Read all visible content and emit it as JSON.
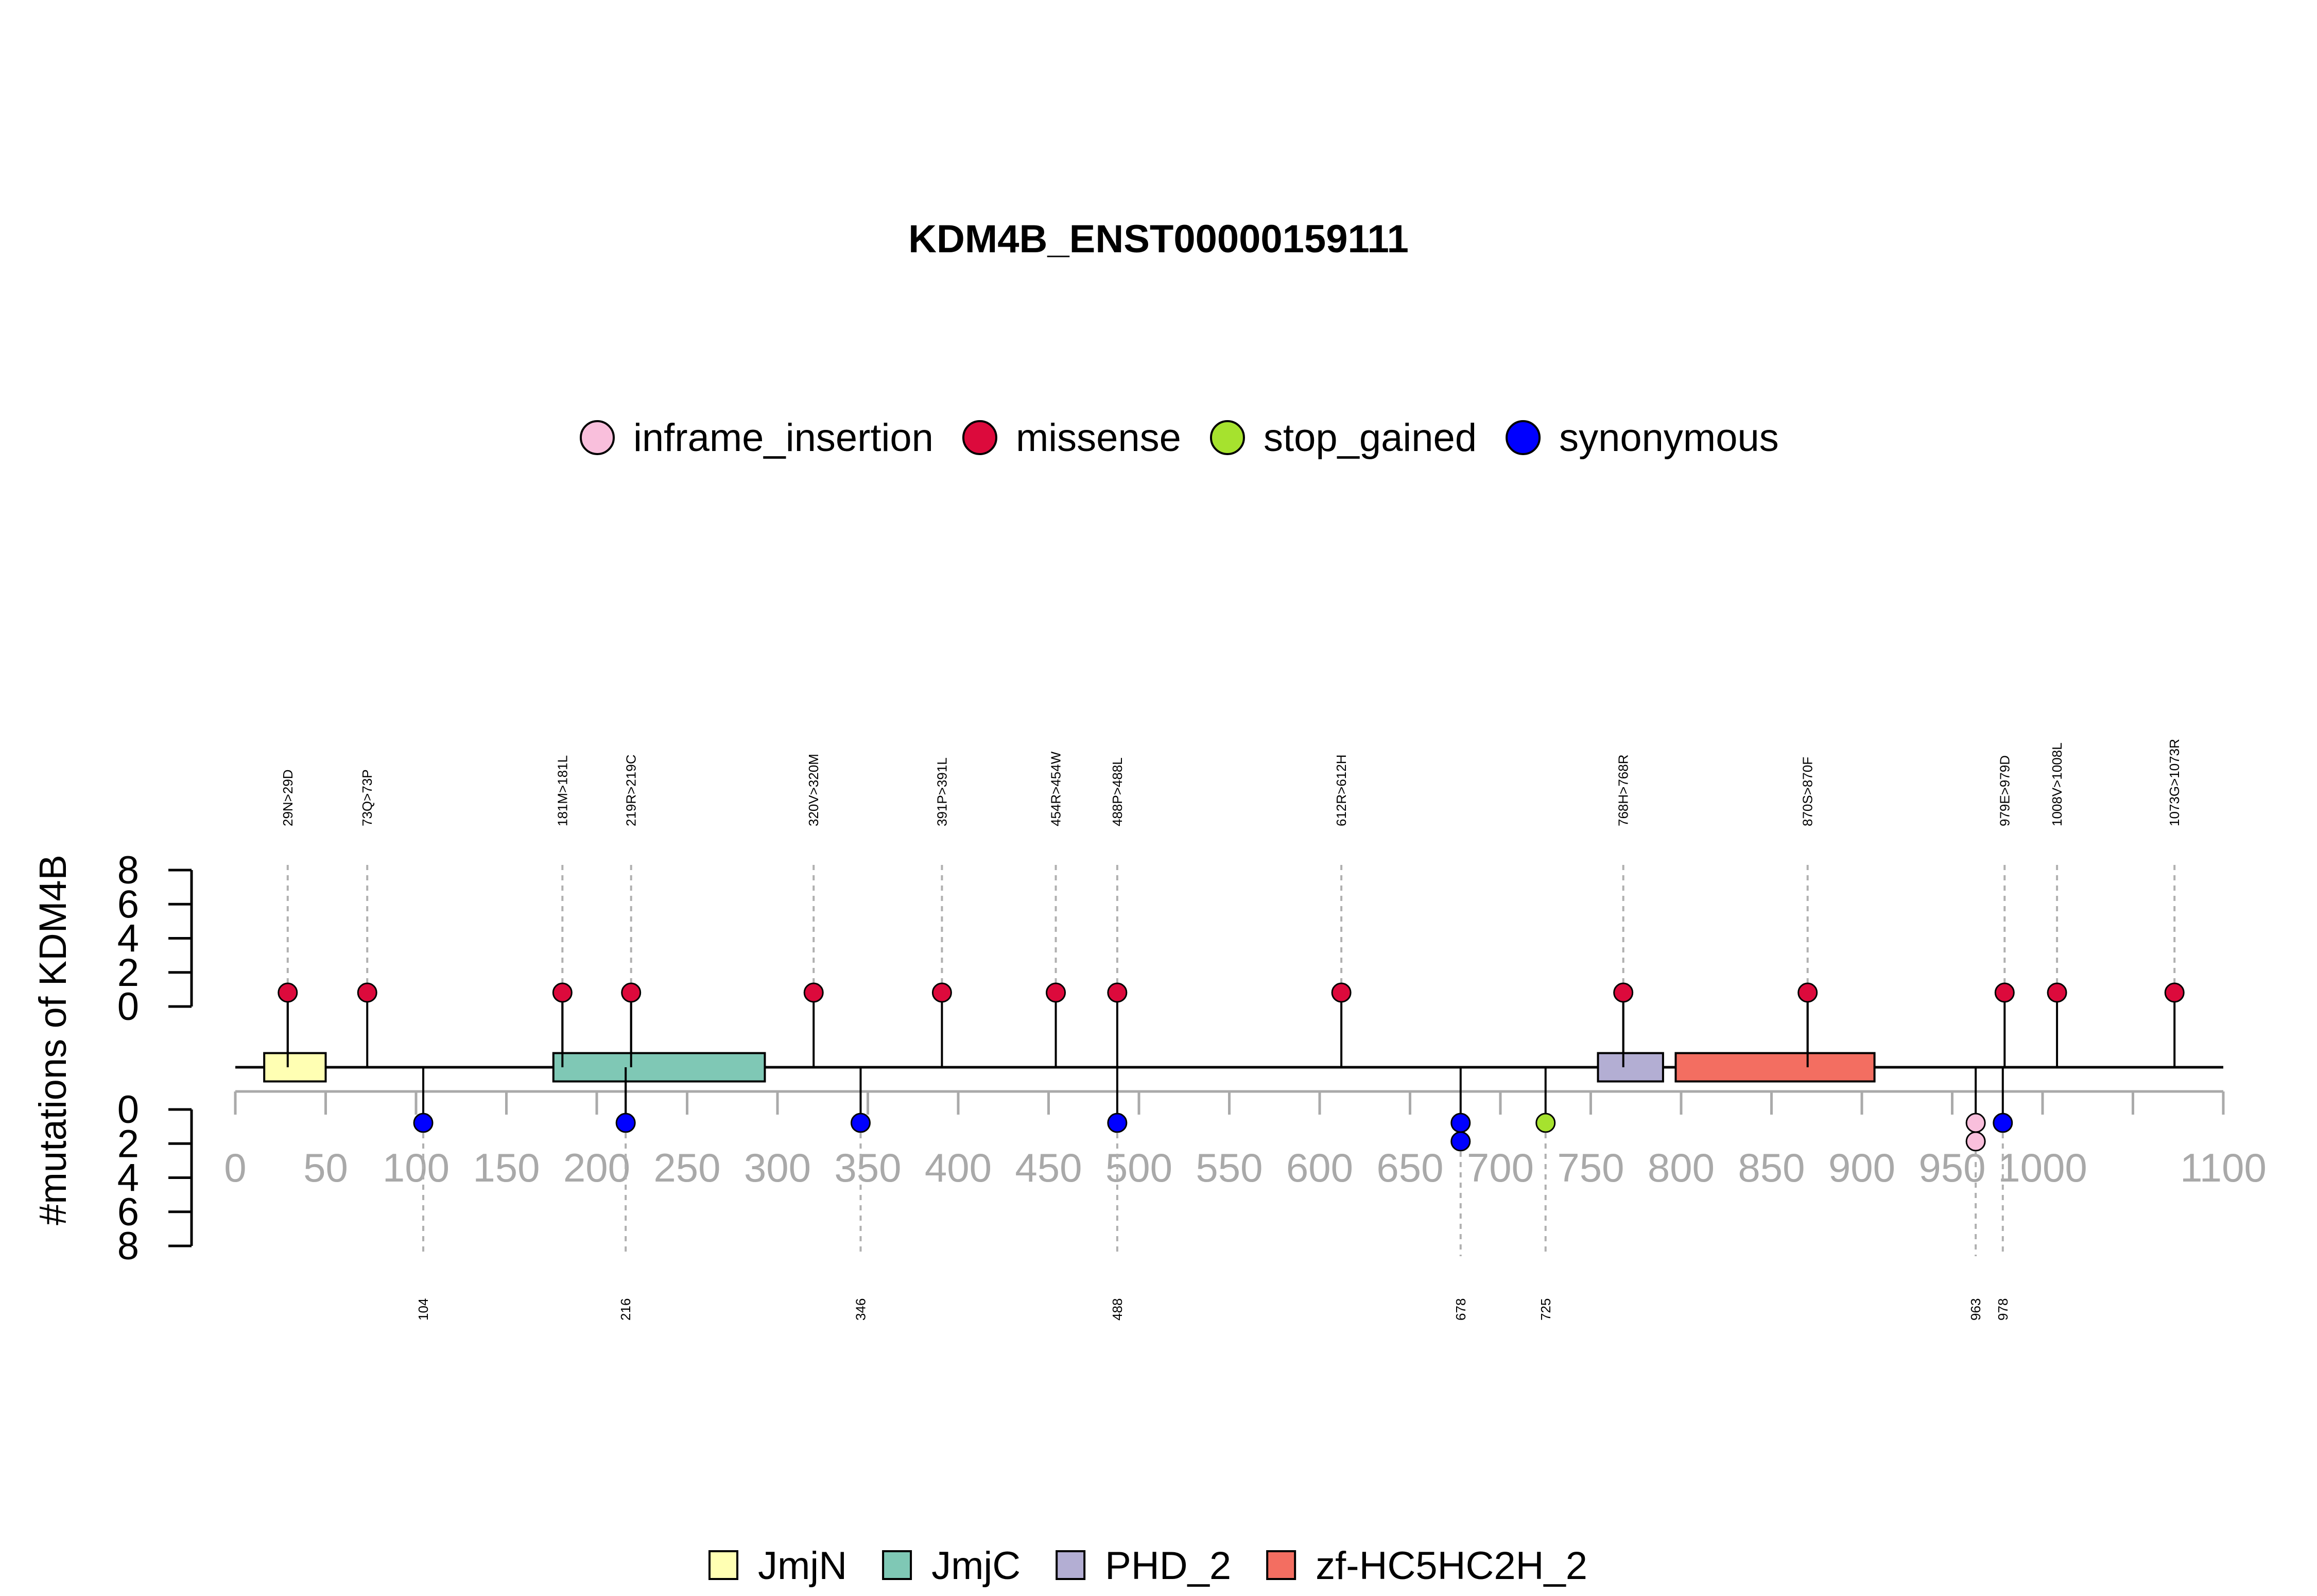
{
  "chart_data": {
    "type": "lollipop",
    "title": "KDM4B_ENST00000159111",
    "ylabel": "#mutations of KDM4B",
    "xlim": [
      0,
      1100
    ],
    "x_ticks": [
      0,
      50,
      100,
      150,
      200,
      250,
      300,
      350,
      400,
      450,
      500,
      550,
      600,
      650,
      700,
      750,
      800,
      850,
      900,
      950,
      1000,
      1050,
      1100
    ],
    "x_tick_labels": [
      "0",
      "50",
      "100",
      "150",
      "200",
      "250",
      "300",
      "350",
      "400",
      "450",
      "500",
      "550",
      "600",
      "650",
      "700",
      "750",
      "800",
      "850",
      "900",
      "950",
      "1000",
      "",
      "1100"
    ],
    "y_upper_ticks": [
      "0",
      "2",
      "4",
      "6",
      "8"
    ],
    "y_lower_ticks": [
      "0",
      "2",
      "4",
      "6",
      "8"
    ],
    "ylim": [
      0,
      8
    ],
    "mutation_legend": [
      {
        "name": "inframe_insertion",
        "color": "#F9BFDC"
      },
      {
        "name": "missense",
        "color": "#DC0A3C"
      },
      {
        "name": "stop_gained",
        "color": "#A6E22E"
      },
      {
        "name": "synonymous",
        "color": "#0000FF"
      }
    ],
    "domain_legend": [
      {
        "name": "JmjN",
        "color": "#FFFFB3"
      },
      {
        "name": "JmjC",
        "color": "#7FC8B5"
      },
      {
        "name": "PHD_2",
        "color": "#B3AED3"
      },
      {
        "name": "zf-HC5HC2H_2",
        "color": "#F36E61"
      }
    ],
    "domains": [
      {
        "name": "JmjN",
        "start": 16,
        "end": 50
      },
      {
        "name": "JmjC",
        "start": 176,
        "end": 293
      },
      {
        "name": "PHD_2",
        "start": 754,
        "end": 790
      },
      {
        "name": "zf-HC5HC2H_2",
        "start": 797,
        "end": 907
      }
    ],
    "upper_mutations": [
      {
        "pos": 29,
        "label": "29N>29D",
        "type": "missense",
        "count": 1
      },
      {
        "pos": 73,
        "label": "73Q>73P",
        "type": "missense",
        "count": 1
      },
      {
        "pos": 181,
        "label": "181M>181L",
        "type": "missense",
        "count": 1
      },
      {
        "pos": 219,
        "label": "219R>219C",
        "type": "missense",
        "count": 1
      },
      {
        "pos": 320,
        "label": "320V>320M",
        "type": "missense",
        "count": 1
      },
      {
        "pos": 391,
        "label": "391P>391L",
        "type": "missense",
        "count": 1
      },
      {
        "pos": 454,
        "label": "454R>454W",
        "type": "missense",
        "count": 1
      },
      {
        "pos": 488,
        "label": "488P>488L",
        "type": "missense",
        "count": 1
      },
      {
        "pos": 612,
        "label": "612R>612H",
        "type": "missense",
        "count": 1
      },
      {
        "pos": 768,
        "label": "768H>768R",
        "type": "missense",
        "count": 1
      },
      {
        "pos": 870,
        "label": "870S>870F",
        "type": "missense",
        "count": 1
      },
      {
        "pos": 979,
        "label": "979E>979D",
        "type": "missense",
        "count": 1
      },
      {
        "pos": 1008,
        "label": "1008V>1008L",
        "type": "missense",
        "count": 1
      },
      {
        "pos": 1073,
        "label": "1073G>1073R",
        "type": "missense",
        "count": 1
      }
    ],
    "lower_mutations": [
      {
        "pos": 104,
        "label": "104",
        "types": [
          "synonymous"
        ]
      },
      {
        "pos": 216,
        "label": "216",
        "types": [
          "synonymous"
        ]
      },
      {
        "pos": 346,
        "label": "346",
        "types": [
          "synonymous"
        ]
      },
      {
        "pos": 488,
        "label": "488",
        "types": [
          "synonymous"
        ]
      },
      {
        "pos": 678,
        "label": "678",
        "types": [
          "synonymous",
          "synonymous"
        ]
      },
      {
        "pos": 725,
        "label": "725",
        "types": [
          "stop_gained"
        ]
      },
      {
        "pos": 963,
        "label": "963",
        "types": [
          "inframe_insertion",
          "inframe_insertion"
        ]
      },
      {
        "pos": 978,
        "label": "978",
        "types": [
          "synonymous"
        ]
      }
    ]
  }
}
